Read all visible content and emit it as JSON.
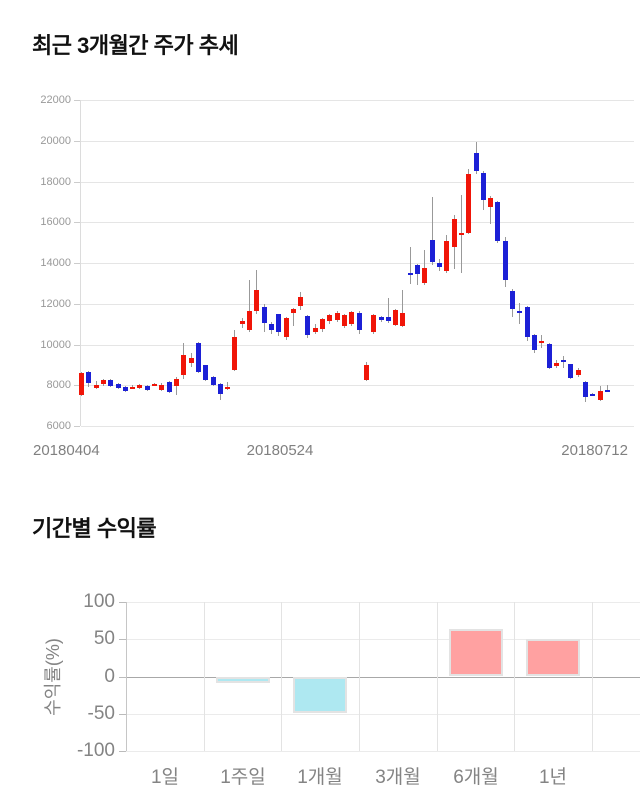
{
  "price_section": {
    "title": "최근 3개월간 주가 추세"
  },
  "returns_section": {
    "title": "기간별 수익률"
  },
  "chart_data": [
    {
      "type": "candlestick",
      "title": "최근 3개월간 주가 추세",
      "ylim": [
        6000,
        22000
      ],
      "yticks": [
        22000,
        20000,
        18000,
        16000,
        14000,
        12000,
        10000,
        8000,
        6000
      ],
      "xticks": [
        "20180404",
        "20180524",
        "20180712"
      ],
      "grid": "horizontal",
      "legend": "none",
      "colors": {
        "up": "#f01508",
        "down": "#1c20d6",
        "wick": "#999999"
      },
      "candles_format": [
        "open",
        "high",
        "low",
        "close"
      ],
      "candles": [
        [
          7500,
          8650,
          7450,
          8600
        ],
        [
          8650,
          8700,
          7900,
          8100
        ],
        [
          7870,
          8200,
          7800,
          8000
        ],
        [
          8050,
          8300,
          7950,
          8250
        ],
        [
          8250,
          8300,
          7900,
          7950
        ],
        [
          8050,
          8100,
          7800,
          7870
        ],
        [
          7900,
          7950,
          7650,
          7700
        ],
        [
          7850,
          8000,
          7800,
          7900
        ],
        [
          7850,
          8050,
          7800,
          8000
        ],
        [
          7950,
          8000,
          7700,
          7750
        ],
        [
          8030,
          8100,
          7950,
          8070
        ],
        [
          7770,
          8100,
          7700,
          8030
        ],
        [
          8160,
          8200,
          7600,
          7660
        ],
        [
          7950,
          8400,
          7500,
          8320
        ],
        [
          8490,
          10050,
          8300,
          9470
        ],
        [
          9070,
          9600,
          8900,
          9360
        ],
        [
          10050,
          10100,
          8600,
          8650
        ],
        [
          8980,
          9000,
          8200,
          8240
        ],
        [
          8410,
          8450,
          7950,
          8000
        ],
        [
          8050,
          8100,
          7260,
          7560
        ],
        [
          7850,
          8150,
          7750,
          7900
        ],
        [
          8770,
          10700,
          8700,
          10380
        ],
        [
          10990,
          11300,
          10800,
          11150
        ],
        [
          10710,
          13180,
          10600,
          11620
        ],
        [
          11620,
          13670,
          11500,
          12680
        ],
        [
          11860,
          12000,
          10600,
          11040
        ],
        [
          11000,
          11100,
          10500,
          10710
        ],
        [
          11480,
          11520,
          10400,
          10620
        ],
        [
          10370,
          11350,
          10200,
          11280
        ],
        [
          11540,
          11800,
          10900,
          11740
        ],
        [
          11900,
          12600,
          11700,
          12350
        ],
        [
          11390,
          11450,
          10300,
          10490
        ],
        [
          10600,
          11000,
          10500,
          10820
        ],
        [
          10740,
          11300,
          10600,
          11230
        ],
        [
          11150,
          11500,
          11000,
          11430
        ],
        [
          11200,
          11650,
          11100,
          11560
        ],
        [
          10930,
          11500,
          10800,
          11430
        ],
        [
          11000,
          11650,
          10900,
          11600
        ],
        [
          11560,
          11620,
          10500,
          10710
        ],
        [
          8240,
          9140,
          8200,
          8980
        ],
        [
          10620,
          11500,
          10500,
          11430
        ],
        [
          11340,
          11400,
          11100,
          11200
        ],
        [
          11340,
          12270,
          11050,
          11150
        ],
        [
          10960,
          11750,
          10900,
          11700
        ],
        [
          10930,
          12670,
          10850,
          11560
        ],
        [
          13500,
          14800,
          12950,
          13400
        ],
        [
          13880,
          13950,
          12900,
          13440
        ],
        [
          13030,
          14650,
          12900,
          13770
        ],
        [
          15140,
          17250,
          13900,
          14040
        ],
        [
          14010,
          14200,
          13600,
          13810
        ],
        [
          13620,
          15390,
          13500,
          15100
        ],
        [
          14770,
          16350,
          13700,
          16170
        ],
        [
          15400,
          17360,
          13500,
          15480
        ],
        [
          15480,
          18600,
          15400,
          18350
        ],
        [
          19420,
          19940,
          18350,
          18510
        ],
        [
          18430,
          18500,
          16600,
          17080
        ],
        [
          16760,
          17300,
          15900,
          17200
        ],
        [
          16990,
          17050,
          14970,
          15060
        ],
        [
          15090,
          15300,
          12800,
          13170
        ],
        [
          12650,
          12700,
          11350,
          11730
        ],
        [
          11650,
          12050,
          11000,
          11610
        ],
        [
          11830,
          11900,
          10180,
          10380
        ],
        [
          10470,
          10500,
          9570,
          9730
        ],
        [
          10150,
          10470,
          9820,
          10180
        ],
        [
          10020,
          10050,
          8800,
          8840
        ],
        [
          8940,
          9230,
          8840,
          9100
        ],
        [
          9250,
          9430,
          8870,
          9200
        ],
        [
          9020,
          9050,
          8300,
          8360
        ],
        [
          8490,
          8850,
          8400,
          8770
        ],
        [
          8160,
          8200,
          7170,
          7420
        ],
        [
          7570,
          7620,
          7480,
          7530
        ],
        [
          7290,
          7960,
          7250,
          7720
        ],
        [
          7760,
          8000,
          7700,
          7740
        ]
      ]
    },
    {
      "type": "bar",
      "title": "기간별 수익률",
      "ylabel": "수익률(%)",
      "categories": [
        "1일",
        "1주일",
        "1개월",
        "3개월",
        "6개월",
        "1년"
      ],
      "values": [
        0,
        -9,
        -49,
        0,
        64,
        51
      ],
      "ylim": [
        -100,
        100
      ],
      "yticks": [
        100,
        50,
        0,
        -50,
        -100
      ],
      "grid": "both",
      "legend": "none",
      "colors": {
        "positive": "#ffa1a1",
        "negative": "#aee8f1",
        "bar_border": "#e3e3e3"
      }
    }
  ]
}
